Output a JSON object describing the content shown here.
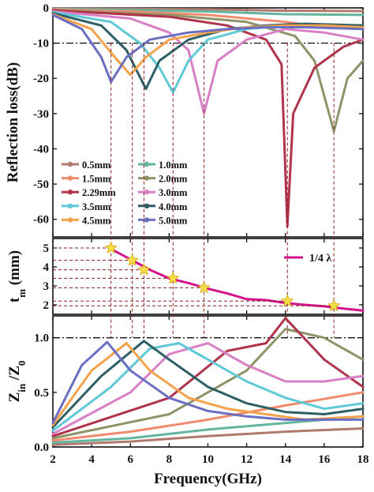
{
  "chart_data": [
    {
      "type": "line",
      "ylabel": "Reflection loss(dB)",
      "xlim": [
        2,
        18
      ],
      "ylim": [
        -65,
        0
      ],
      "yticks": [
        "0",
        "-10",
        "-20",
        "-30",
        "-40",
        "-50",
        "-60"
      ],
      "reference_line": {
        "y": -10,
        "style": "dash-dot"
      },
      "legend": {
        "placement": "lower-left",
        "columns": 2
      },
      "series": [
        {
          "name": "0.5mm",
          "color": "#b07a6e",
          "points": [
            [
              2,
              -0.2
            ],
            [
              6,
              -0.3
            ],
            [
              10,
              -0.4
            ],
            [
              14,
              -0.8
            ],
            [
              18,
              -0.9
            ]
          ]
        },
        {
          "name": "1.0mm",
          "color": "#63b5a0",
          "points": [
            [
              2,
              -0.3
            ],
            [
              6,
              -0.6
            ],
            [
              10,
              -1.0
            ],
            [
              14,
              -1.8
            ],
            [
              18,
              -2.0
            ]
          ]
        },
        {
          "name": "1.5mm",
          "color": "#f08b6e",
          "points": [
            [
              2,
              -0.4
            ],
            [
              6,
              -1.0
            ],
            [
              10,
              -2.0
            ],
            [
              14,
              -4.0
            ],
            [
              16,
              -5.5
            ],
            [
              18,
              -6.0
            ]
          ]
        },
        {
          "name": "2.0mm",
          "color": "#8e9468",
          "points": [
            [
              2,
              -0.6
            ],
            [
              8,
              -2.0
            ],
            [
              12,
              -4.0
            ],
            [
              14.5,
              -8.0
            ],
            [
              15.5,
              -15.0
            ],
            [
              16.5,
              -35.0
            ],
            [
              17.2,
              -20.0
            ],
            [
              18,
              -15.0
            ]
          ]
        },
        {
          "name": "2.29mm",
          "color": "#b0354c",
          "points": [
            [
              2,
              -0.7
            ],
            [
              8,
              -2.5
            ],
            [
              11,
              -5.0
            ],
            [
              13,
              -9.0
            ],
            [
              13.8,
              -16.0
            ],
            [
              14.1,
              -62.0
            ],
            [
              14.4,
              -30.0
            ],
            [
              15.5,
              -17.0
            ],
            [
              17,
              -11.0
            ],
            [
              18,
              -9.0
            ]
          ]
        },
        {
          "name": "3.0mm",
          "color": "#d97fc5",
          "points": [
            [
              2,
              -1.0
            ],
            [
              6,
              -3.0
            ],
            [
              8,
              -7.0
            ],
            [
              9,
              -12.0
            ],
            [
              9.8,
              -30.0
            ],
            [
              10.5,
              -15.0
            ],
            [
              12,
              -9.0
            ],
            [
              14,
              -6.0
            ],
            [
              16,
              -7.0
            ],
            [
              18,
              -9.0
            ]
          ]
        },
        {
          "name": "3.5mm",
          "color": "#5fc9d8",
          "points": [
            [
              2,
              -1.2
            ],
            [
              5,
              -4.0
            ],
            [
              6.5,
              -10.0
            ],
            [
              7.5,
              -17.0
            ],
            [
              8.2,
              -24.0
            ],
            [
              9,
              -15.0
            ],
            [
              10,
              -9.0
            ],
            [
              12,
              -6.0
            ],
            [
              14,
              -5.0
            ],
            [
              16,
              -5.5
            ],
            [
              18,
              -6.0
            ]
          ]
        },
        {
          "name": "4.0mm",
          "color": "#2f5f66",
          "points": [
            [
              2,
              -1.5
            ],
            [
              4.5,
              -5.0
            ],
            [
              5.8,
              -12.0
            ],
            [
              6.8,
              -23.0
            ],
            [
              7.5,
              -15.0
            ],
            [
              9,
              -9.0
            ],
            [
              11,
              -6.0
            ],
            [
              13,
              -5.0
            ],
            [
              15,
              -4.5
            ],
            [
              18,
              -5.0
            ]
          ]
        },
        {
          "name": "4.5mm",
          "color": "#f4a24b",
          "points": [
            [
              2,
              -1.8
            ],
            [
              4,
              -6.0
            ],
            [
              5.2,
              -14.0
            ],
            [
              6,
              -19.0
            ],
            [
              6.8,
              -14.0
            ],
            [
              8,
              -9.0
            ],
            [
              10,
              -7.0
            ],
            [
              12,
              -5.5
            ],
            [
              14,
              -5.0
            ],
            [
              16,
              -5.0
            ],
            [
              18,
              -5.5
            ]
          ]
        },
        {
          "name": "5.0mm",
          "color": "#6a6fc2",
          "points": [
            [
              2,
              -2.0
            ],
            [
              3.5,
              -6.0
            ],
            [
              4.5,
              -14.0
            ],
            [
              5,
              -21.0
            ],
            [
              5.8,
              -14.0
            ],
            [
              7,
              -9.0
            ],
            [
              9,
              -7.0
            ],
            [
              11,
              -6.0
            ],
            [
              13,
              -5.5
            ],
            [
              15,
              -5.5
            ],
            [
              18,
              -6.0
            ]
          ]
        }
      ]
    },
    {
      "type": "line",
      "ylabel": "t_m (mm)",
      "ylim": [
        1.5,
        5.5
      ],
      "yticks": [
        "2",
        "3",
        "4",
        "5"
      ],
      "series": [
        {
          "name": "1/4 λ",
          "color": "#d4148c",
          "points": [
            [
              5,
              4.95
            ],
            [
              6,
              4.4
            ],
            [
              7,
              3.85
            ],
            [
              8,
              3.4
            ],
            [
              9,
              3.15
            ],
            [
              10,
              2.85
            ],
            [
              11,
              2.6
            ],
            [
              12,
              2.3
            ],
            [
              13,
              2.25
            ],
            [
              14,
              2.1
            ],
            [
              15,
              2.0
            ],
            [
              16,
              1.92
            ],
            [
              17,
              1.8
            ],
            [
              18,
              1.7
            ]
          ]
        }
      ],
      "stars": [
        [
          5.0,
          5.0
        ],
        [
          6.1,
          4.35
        ],
        [
          6.7,
          3.85
        ],
        [
          8.2,
          3.4
        ],
        [
          9.8,
          2.9
        ],
        [
          14.1,
          2.2
        ],
        [
          16.5,
          1.95
        ]
      ]
    },
    {
      "type": "line",
      "ylabel": "Z_in /Z_0",
      "xlabel": "Frequency(GHz)",
      "xticks": [
        "2",
        "4",
        "6",
        "8",
        "10",
        "12",
        "14",
        "16",
        "18"
      ],
      "ylim": [
        0,
        1.2
      ],
      "yticks": [
        "0.0",
        "0.5",
        "1.0"
      ],
      "reference_line": {
        "y": 1.0,
        "style": "dash-dot"
      },
      "series": [
        {
          "name": "0.5mm",
          "color": "#b07a6e",
          "points": [
            [
              2,
              0.02
            ],
            [
              6,
              0.05
            ],
            [
              10,
              0.1
            ],
            [
              14,
              0.14
            ],
            [
              18,
              0.17
            ]
          ]
        },
        {
          "name": "1.0mm",
          "color": "#63b5a0",
          "points": [
            [
              2,
              0.04
            ],
            [
              6,
              0.08
            ],
            [
              10,
              0.16
            ],
            [
              14,
              0.22
            ],
            [
              18,
              0.28
            ]
          ]
        },
        {
          "name": "1.5mm",
          "color": "#f08b6e",
          "points": [
            [
              2,
              0.06
            ],
            [
              6,
              0.14
            ],
            [
              10,
              0.25
            ],
            [
              14,
              0.38
            ],
            [
              18,
              0.5
            ]
          ]
        },
        {
          "name": "2.0mm",
          "color": "#8e9468",
          "points": [
            [
              2,
              0.08
            ],
            [
              8,
              0.3
            ],
            [
              12,
              0.7
            ],
            [
              14,
              1.08
            ],
            [
              16,
              1.0
            ],
            [
              18,
              0.8
            ]
          ]
        },
        {
          "name": "2.29mm",
          "color": "#b0354c",
          "points": [
            [
              2,
              0.1
            ],
            [
              8,
              0.45
            ],
            [
              11,
              0.88
            ],
            [
              13,
              0.95
            ],
            [
              14,
              1.18
            ],
            [
              16,
              0.8
            ],
            [
              18,
              0.55
            ]
          ]
        },
        {
          "name": "3.0mm",
          "color": "#d97fc5",
          "points": [
            [
              2,
              0.12
            ],
            [
              6,
              0.5
            ],
            [
              8,
              0.85
            ],
            [
              10,
              0.95
            ],
            [
              12,
              0.75
            ],
            [
              14,
              0.6
            ],
            [
              16,
              0.6
            ],
            [
              18,
              0.65
            ]
          ]
        },
        {
          "name": "3.5mm",
          "color": "#5fc9d8",
          "points": [
            [
              2,
              0.15
            ],
            [
              5,
              0.55
            ],
            [
              7,
              0.9
            ],
            [
              8.5,
              0.95
            ],
            [
              10,
              0.8
            ],
            [
              12,
              0.6
            ],
            [
              14,
              0.45
            ],
            [
              16,
              0.35
            ],
            [
              18,
              0.4
            ]
          ]
        },
        {
          "name": "4.0mm",
          "color": "#2f5f66",
          "points": [
            [
              2,
              0.18
            ],
            [
              4.5,
              0.65
            ],
            [
              6.7,
              0.97
            ],
            [
              8,
              0.8
            ],
            [
              10,
              0.55
            ],
            [
              12,
              0.4
            ],
            [
              14,
              0.32
            ],
            [
              16,
              0.3
            ],
            [
              18,
              0.35
            ]
          ]
        },
        {
          "name": "4.5mm",
          "color": "#f4a24b",
          "points": [
            [
              2,
              0.2
            ],
            [
              4,
              0.7
            ],
            [
              5.8,
              0.95
            ],
            [
              7,
              0.7
            ],
            [
              9,
              0.45
            ],
            [
              11,
              0.35
            ],
            [
              13,
              0.3
            ],
            [
              15,
              0.25
            ],
            [
              18,
              0.28
            ]
          ]
        },
        {
          "name": "5.0mm",
          "color": "#6a6fc2",
          "points": [
            [
              2,
              0.22
            ],
            [
              3.5,
              0.75
            ],
            [
              4.8,
              0.96
            ],
            [
              6,
              0.7
            ],
            [
              8,
              0.45
            ],
            [
              10,
              0.33
            ],
            [
              12,
              0.28
            ],
            [
              14,
              0.25
            ],
            [
              18,
              0.25
            ]
          ]
        }
      ]
    }
  ],
  "guides": {
    "vertical_x": [
      5.0,
      6.1,
      6.7,
      8.2,
      9.8,
      14.1,
      16.5
    ]
  }
}
